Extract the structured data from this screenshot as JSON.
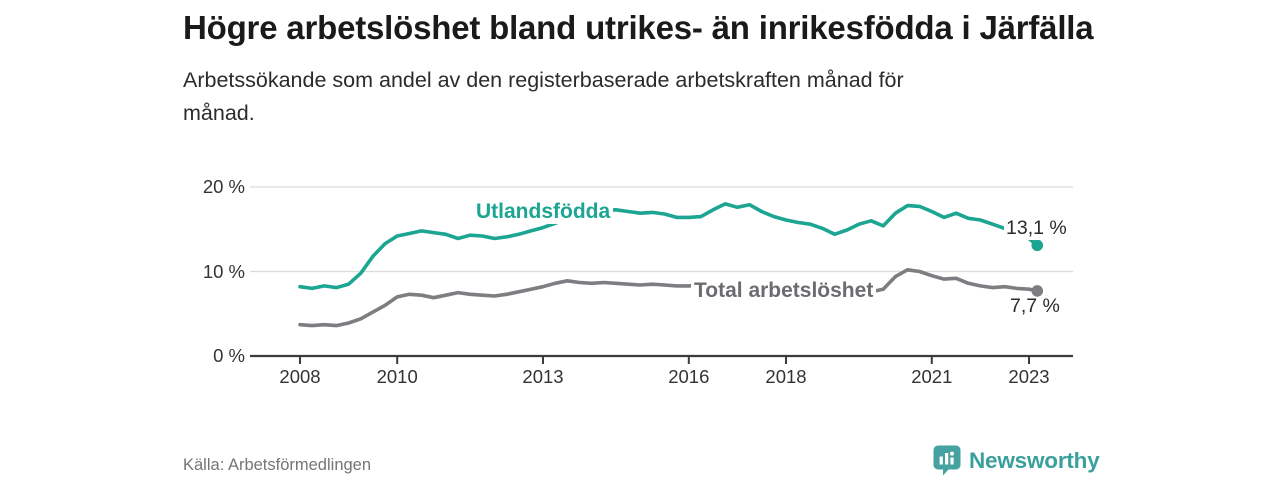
{
  "header": {
    "title": "Högre arbetslöshet bland utrikes- än inrikesfödda i Järfälla",
    "subtitle": "Arbetssökande som andel av den registerbaserade arbetskraften månad för månad."
  },
  "footer": {
    "source": "Källa: Arbetsförmedlingen",
    "brand": "Newsworthy"
  },
  "colors": {
    "foreign_series": "#1ba592",
    "total_series": "#7e7e82",
    "total_label": "#6c6c70",
    "value_text": "#2b2b2b",
    "axis": "#3c3c3c",
    "grid": "#dcdcdc",
    "brand_teal": "#3aa09c",
    "title_text": "#1a1a1a",
    "muted_text": "#757575"
  },
  "chart_data": {
    "type": "line",
    "title": "Högre arbetslöshet bland utrikes- än inrikesfödda i Järfälla",
    "subtitle": "Arbetssökande som andel av den registerbaserade arbetskraften månad för månad.",
    "xlabel": "",
    "ylabel": "%",
    "ylim": [
      0,
      20
    ],
    "xlim": [
      2007,
      2023.6
    ],
    "grid": "horizontal",
    "legend_position": "inline-labels",
    "y_ticks": [
      {
        "value": 20,
        "label": "20 %"
      },
      {
        "value": 10,
        "label": "10 %"
      },
      {
        "value": 0,
        "label": "0 %"
      }
    ],
    "x_ticks": [
      {
        "year": 2008,
        "label": "2008"
      },
      {
        "year": 2010,
        "label": "2010"
      },
      {
        "year": 2013,
        "label": "2013"
      },
      {
        "year": 2016,
        "label": "2016"
      },
      {
        "year": 2018,
        "label": "2018"
      },
      {
        "year": 2021,
        "label": "2021"
      },
      {
        "year": 2023,
        "label": "2023"
      }
    ],
    "series": [
      {
        "name": "Utlandsfödda",
        "color": "#1ba592",
        "label_color": "#1ba592",
        "end_label": "13,1 %",
        "end_value": 13.1,
        "data": [
          [
            2008.0,
            8.2
          ],
          [
            2008.25,
            8.0
          ],
          [
            2008.5,
            8.3
          ],
          [
            2008.75,
            8.1
          ],
          [
            2009.0,
            8.5
          ],
          [
            2009.25,
            9.8
          ],
          [
            2009.5,
            11.8
          ],
          [
            2009.75,
            13.3
          ],
          [
            2010.0,
            14.2
          ],
          [
            2010.25,
            14.5
          ],
          [
            2010.5,
            14.8
          ],
          [
            2010.75,
            14.6
          ],
          [
            2011.0,
            14.4
          ],
          [
            2011.25,
            13.9
          ],
          [
            2011.5,
            14.3
          ],
          [
            2011.75,
            14.2
          ],
          [
            2012.0,
            13.9
          ],
          [
            2012.25,
            14.1
          ],
          [
            2012.5,
            14.4
          ],
          [
            2012.75,
            14.8
          ],
          [
            2013.0,
            15.2
          ],
          [
            2013.25,
            15.7
          ],
          [
            2013.5,
            16.3
          ],
          [
            2013.75,
            16.7
          ],
          [
            2014.0,
            17.0
          ],
          [
            2014.25,
            17.2
          ],
          [
            2014.5,
            17.3
          ],
          [
            2014.75,
            17.1
          ],
          [
            2015.0,
            16.9
          ],
          [
            2015.25,
            17.0
          ],
          [
            2015.5,
            16.8
          ],
          [
            2015.75,
            16.4
          ],
          [
            2016.0,
            16.4
          ],
          [
            2016.25,
            16.5
          ],
          [
            2016.5,
            17.3
          ],
          [
            2016.75,
            18.0
          ],
          [
            2017.0,
            17.6
          ],
          [
            2017.25,
            17.9
          ],
          [
            2017.5,
            17.1
          ],
          [
            2017.75,
            16.5
          ],
          [
            2018.0,
            16.1
          ],
          [
            2018.25,
            15.8
          ],
          [
            2018.5,
            15.6
          ],
          [
            2018.75,
            15.1
          ],
          [
            2019.0,
            14.4
          ],
          [
            2019.25,
            14.9
          ],
          [
            2019.5,
            15.6
          ],
          [
            2019.75,
            16.0
          ],
          [
            2020.0,
            15.4
          ],
          [
            2020.25,
            16.9
          ],
          [
            2020.5,
            17.8
          ],
          [
            2020.75,
            17.7
          ],
          [
            2021.0,
            17.1
          ],
          [
            2021.25,
            16.4
          ],
          [
            2021.5,
            16.9
          ],
          [
            2021.75,
            16.3
          ],
          [
            2022.0,
            16.1
          ],
          [
            2022.25,
            15.6
          ],
          [
            2022.5,
            15.1
          ],
          [
            2022.75,
            14.6
          ],
          [
            2023.0,
            13.9
          ],
          [
            2023.17,
            13.1
          ]
        ]
      },
      {
        "name": "Total arbetslöshet",
        "color": "#7e7e82",
        "label_color": "#6c6c70",
        "end_label": "7,7 %",
        "end_value": 7.7,
        "data": [
          [
            2008.0,
            3.7
          ],
          [
            2008.25,
            3.6
          ],
          [
            2008.5,
            3.7
          ],
          [
            2008.75,
            3.6
          ],
          [
            2009.0,
            3.9
          ],
          [
            2009.25,
            4.4
          ],
          [
            2009.5,
            5.2
          ],
          [
            2009.75,
            6.0
          ],
          [
            2010.0,
            7.0
          ],
          [
            2010.25,
            7.3
          ],
          [
            2010.5,
            7.2
          ],
          [
            2010.75,
            6.9
          ],
          [
            2011.0,
            7.2
          ],
          [
            2011.25,
            7.5
          ],
          [
            2011.5,
            7.3
          ],
          [
            2011.75,
            7.2
          ],
          [
            2012.0,
            7.1
          ],
          [
            2012.25,
            7.3
          ],
          [
            2012.5,
            7.6
          ],
          [
            2012.75,
            7.9
          ],
          [
            2013.0,
            8.2
          ],
          [
            2013.25,
            8.6
          ],
          [
            2013.5,
            8.9
          ],
          [
            2013.75,
            8.7
          ],
          [
            2014.0,
            8.6
          ],
          [
            2014.25,
            8.7
          ],
          [
            2014.5,
            8.6
          ],
          [
            2014.75,
            8.5
          ],
          [
            2015.0,
            8.4
          ],
          [
            2015.25,
            8.5
          ],
          [
            2015.5,
            8.4
          ],
          [
            2015.75,
            8.3
          ],
          [
            2016.0,
            8.3
          ],
          [
            2016.25,
            8.4
          ],
          [
            2016.5,
            8.3
          ],
          [
            2016.75,
            8.2
          ],
          [
            2017.0,
            8.2
          ],
          [
            2017.25,
            8.1
          ],
          [
            2017.5,
            8.0
          ],
          [
            2017.75,
            7.9
          ],
          [
            2018.0,
            7.8
          ],
          [
            2018.25,
            7.7
          ],
          [
            2018.5,
            7.6
          ],
          [
            2018.75,
            7.5
          ],
          [
            2019.0,
            7.4
          ],
          [
            2019.25,
            7.4
          ],
          [
            2019.5,
            7.5
          ],
          [
            2019.75,
            7.6
          ],
          [
            2020.0,
            7.9
          ],
          [
            2020.25,
            9.4
          ],
          [
            2020.5,
            10.2
          ],
          [
            2020.75,
            10.0
          ],
          [
            2021.0,
            9.5
          ],
          [
            2021.25,
            9.1
          ],
          [
            2021.5,
            9.2
          ],
          [
            2021.75,
            8.6
          ],
          [
            2022.0,
            8.3
          ],
          [
            2022.25,
            8.1
          ],
          [
            2022.5,
            8.2
          ],
          [
            2022.75,
            8.0
          ],
          [
            2023.0,
            7.9
          ],
          [
            2023.17,
            7.7
          ]
        ]
      }
    ]
  }
}
